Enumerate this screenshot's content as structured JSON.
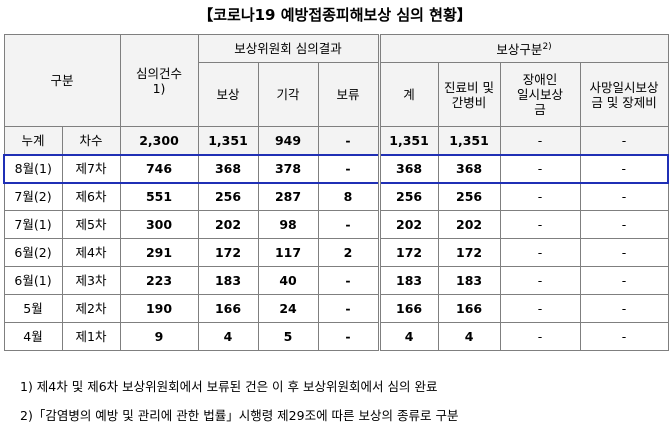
{
  "title": "【코로나19 예방접종피해보상 심의 현황】",
  "header": {
    "gubun": "구분",
    "review_count": "심의건수",
    "review_count_note": "1)",
    "committee_result": "보상위원회 심의결과",
    "compensation": "보상",
    "rejected": "기각",
    "pending": "보류",
    "comp_type": "보상구분",
    "comp_type_note": "2)",
    "total": "계",
    "medical": "진료비 및 간병비",
    "disability": "장애인 일시보상금",
    "death": "사망일시보상금 및 장제비"
  },
  "rows": [
    {
      "period": "누계",
      "round": "차수",
      "count": "2,300",
      "comp": "1,351",
      "reject": "949",
      "pending": "-",
      "total": "1,351",
      "medical": "1,351",
      "disability": "-",
      "death": "-"
    },
    {
      "period": "8월(1)",
      "round": "제7차",
      "count": "746",
      "comp": "368",
      "reject": "378",
      "pending": "-",
      "total": "368",
      "medical": "368",
      "disability": "-",
      "death": "-"
    },
    {
      "period": "7월(2)",
      "round": "제6차",
      "count": "551",
      "comp": "256",
      "reject": "287",
      "pending": "8",
      "total": "256",
      "medical": "256",
      "disability": "-",
      "death": "-"
    },
    {
      "period": "7월(1)",
      "round": "제5차",
      "count": "300",
      "comp": "202",
      "reject": "98",
      "pending": "-",
      "total": "202",
      "medical": "202",
      "disability": "-",
      "death": "-"
    },
    {
      "period": "6월(2)",
      "round": "제4차",
      "count": "291",
      "comp": "172",
      "reject": "117",
      "pending": "2",
      "total": "172",
      "medical": "172",
      "disability": "-",
      "death": "-"
    },
    {
      "period": "6월(1)",
      "round": "제3차",
      "count": "223",
      "comp": "183",
      "reject": "40",
      "pending": "-",
      "total": "183",
      "medical": "183",
      "disability": "-",
      "death": "-"
    },
    {
      "period": "5월",
      "round": "제2차",
      "count": "190",
      "comp": "166",
      "reject": "24",
      "pending": "-",
      "total": "166",
      "medical": "166",
      "disability": "-",
      "death": "-"
    },
    {
      "period": "4월",
      "round": "제1차",
      "count": "9",
      "comp": "4",
      "reject": "5",
      "pending": "-",
      "total": "4",
      "medical": "4",
      "disability": "-",
      "death": "-"
    }
  ],
  "footnotes": [
    "1) 제4차 및 제6차 보상위원회에서 보류된 건은 이 후 보상위원회에서 심의 완료",
    "2)「감염병의 예방 및 관리에 관한 법률」시행령 제29조에 따른 보상의 종류로 구분"
  ],
  "highlight_color": "#1f2fb5"
}
